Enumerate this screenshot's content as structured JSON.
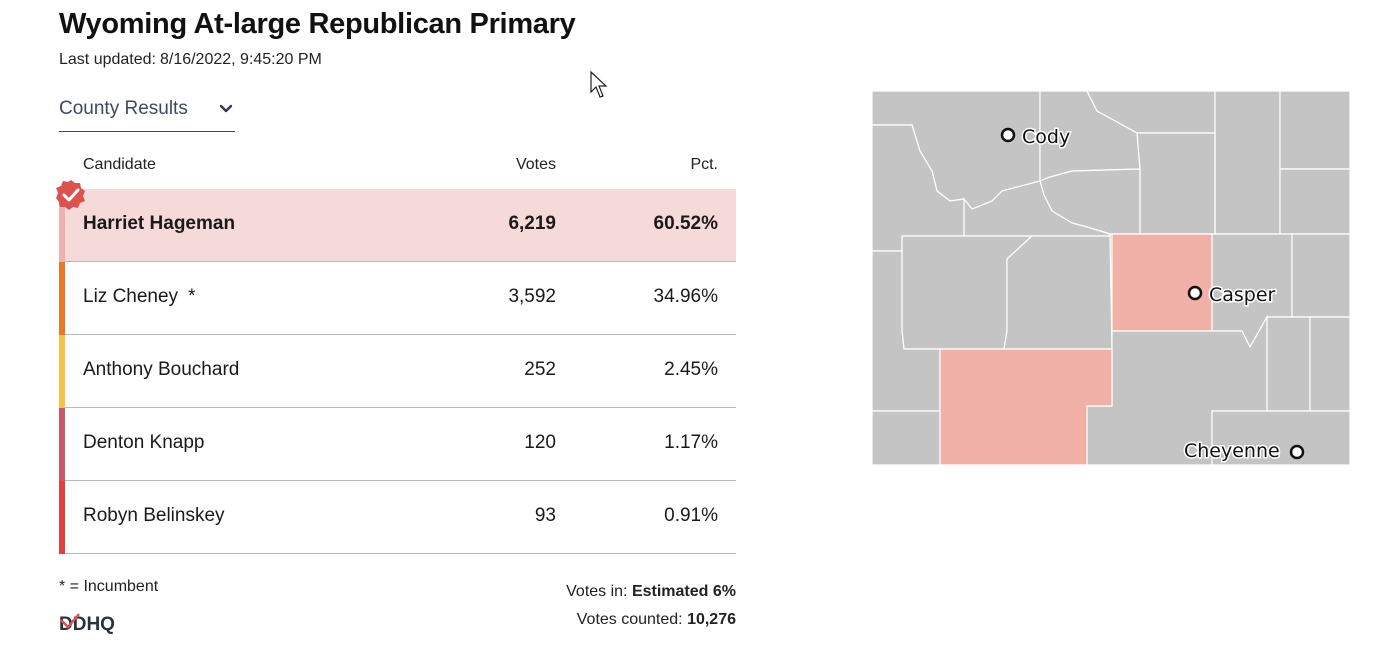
{
  "header": {
    "title": "Wyoming At-large Republican Primary",
    "updated_label": "Last updated:",
    "updated_value": "8/16/2022, 9:45:20 PM"
  },
  "view_selector": {
    "selected": "County Results",
    "icon": "chevron-down-icon"
  },
  "table": {
    "columns": {
      "candidate": "Candidate",
      "votes": "Votes",
      "pct": "Pct."
    },
    "rows": [
      {
        "name": "Harriet Hageman",
        "votes": "6,219",
        "pct": "60.52%",
        "color": "#f0b0ab",
        "winner": true,
        "incumbent": false
      },
      {
        "name": "Liz Cheney",
        "votes": "3,592",
        "pct": "34.96%",
        "color": "#e8772a",
        "winner": false,
        "incumbent": true,
        "incumbent_mark": "*"
      },
      {
        "name": "Anthony Bouchard",
        "votes": "252",
        "pct": "2.45%",
        "color": "#f2c14e",
        "winner": false,
        "incumbent": false
      },
      {
        "name": "Denton Knapp",
        "votes": "120",
        "pct": "1.17%",
        "color": "#c8596a",
        "winner": false,
        "incumbent": false
      },
      {
        "name": "Robyn Belinskey",
        "votes": "93",
        "pct": "0.91%",
        "color": "#e04040",
        "winner": false,
        "incumbent": false
      }
    ]
  },
  "footer": {
    "incumbent_note": "* = Incumbent",
    "votes_in_label": "Votes in:",
    "votes_in_value": "Estimated 6%",
    "votes_counted_label": "Votes counted:",
    "votes_counted_value": "10,276",
    "logo_text": "DDHQ"
  },
  "map": {
    "cities": [
      "Cody",
      "Casper",
      "Cheyenne"
    ],
    "colors": {
      "county": "#c4c4c4",
      "leader": "#f0b0a8",
      "winner_check": "#d9534f"
    }
  }
}
